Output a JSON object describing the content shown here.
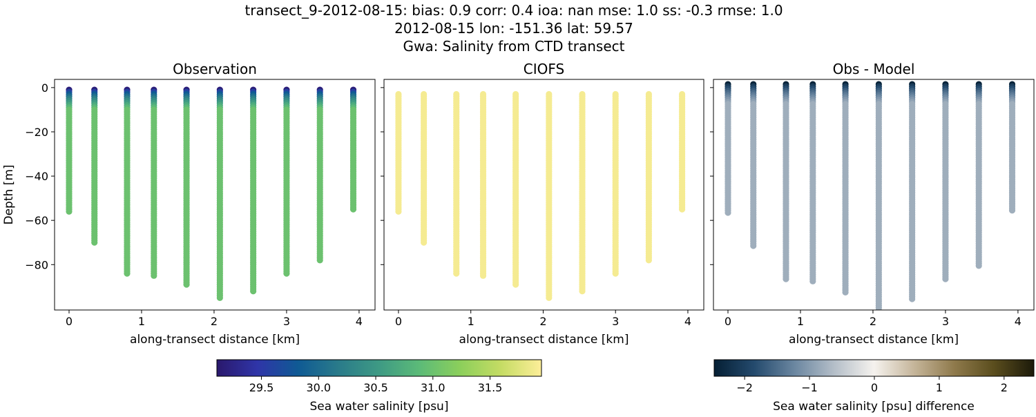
{
  "title_lines": [
    "transect_9-2012-08-15: bias: 0.9  corr: 0.4  ioa: nan  mse: 1.0  ss: -0.3  rmse: 1.0",
    "2012-08-15 lon: -151.36 lat: 59.57",
    "Gwa: Salinity from CTD transect"
  ],
  "chart_data": [
    {
      "type": "scatter",
      "title": "Observation",
      "xlabel": "along-transect distance [km]",
      "ylabel": "Depth [m]",
      "xlim": [
        -0.2,
        4.22
      ],
      "ylim": [
        -100.5,
        3.7
      ],
      "xticks": [
        "0",
        "1",
        "2",
        "3",
        "4"
      ],
      "yticks": [
        "0",
        "−20",
        "−40",
        "−60",
        "−80"
      ],
      "colormap": "haline",
      "stations": [
        {
          "x": 0.0,
          "top": -1,
          "bottom": -56,
          "surface_value": 29.2,
          "deep_value": 31.0
        },
        {
          "x": 0.35,
          "top": -1,
          "bottom": -70,
          "surface_value": 29.2,
          "deep_value": 31.0
        },
        {
          "x": 0.8,
          "top": -1,
          "bottom": -84,
          "surface_value": 29.2,
          "deep_value": 31.0
        },
        {
          "x": 1.17,
          "top": -1,
          "bottom": -85,
          "surface_value": 29.2,
          "deep_value": 31.0
        },
        {
          "x": 1.62,
          "top": -1,
          "bottom": -89,
          "surface_value": 29.2,
          "deep_value": 31.0
        },
        {
          "x": 2.08,
          "top": -1,
          "bottom": -95,
          "surface_value": 29.2,
          "deep_value": 31.0
        },
        {
          "x": 2.54,
          "top": -1,
          "bottom": -92,
          "surface_value": 29.2,
          "deep_value": 31.0
        },
        {
          "x": 3.0,
          "top": -1,
          "bottom": -84,
          "surface_value": 29.2,
          "deep_value": 31.0
        },
        {
          "x": 3.46,
          "top": -1,
          "bottom": -78,
          "surface_value": 29.2,
          "deep_value": 31.0
        },
        {
          "x": 3.92,
          "top": -1,
          "bottom": -55,
          "surface_value": 29.2,
          "deep_value": 31.0
        }
      ]
    },
    {
      "type": "scatter",
      "title": "CIOFS",
      "xlabel": "along-transect distance [km]",
      "xlim": [
        -0.2,
        4.22
      ],
      "ylim": [
        -100.5,
        3.7
      ],
      "xticks": [
        "0",
        "1",
        "2",
        "3",
        "4"
      ],
      "colormap": "haline",
      "stations": [
        {
          "x": 0.0,
          "top": -3,
          "bottom": -56,
          "surface_value": 31.9,
          "deep_value": 31.9
        },
        {
          "x": 0.35,
          "top": -3,
          "bottom": -70,
          "surface_value": 31.9,
          "deep_value": 31.9
        },
        {
          "x": 0.8,
          "top": -3,
          "bottom": -84,
          "surface_value": 31.9,
          "deep_value": 31.9
        },
        {
          "x": 1.17,
          "top": -3,
          "bottom": -85,
          "surface_value": 31.9,
          "deep_value": 31.9
        },
        {
          "x": 1.62,
          "top": -3,
          "bottom": -89,
          "surface_value": 31.9,
          "deep_value": 31.9
        },
        {
          "x": 2.08,
          "top": -3,
          "bottom": -95,
          "surface_value": 31.9,
          "deep_value": 31.9
        },
        {
          "x": 2.54,
          "top": -3,
          "bottom": -92,
          "surface_value": 31.9,
          "deep_value": 31.9
        },
        {
          "x": 3.0,
          "top": -3,
          "bottom": -84,
          "surface_value": 31.9,
          "deep_value": 31.9
        },
        {
          "x": 3.46,
          "top": -3,
          "bottom": -78,
          "surface_value": 31.9,
          "deep_value": 31.9
        },
        {
          "x": 3.92,
          "top": -3,
          "bottom": -55,
          "surface_value": 31.9,
          "deep_value": 31.9
        }
      ]
    },
    {
      "type": "scatter",
      "title": "Obs - Model",
      "xlabel": "along-transect distance [km]",
      "xlim": [
        -0.2,
        4.22
      ],
      "ylim": [
        -100.5,
        3.7
      ],
      "xticks": [
        "0",
        "1",
        "2",
        "3",
        "4"
      ],
      "colormap": "diff",
      "stations": [
        {
          "x": 0.0,
          "top": 1.5,
          "bottom": -57,
          "surface_value": -2.4,
          "deep_value": -0.8
        },
        {
          "x": 0.35,
          "top": 1.5,
          "bottom": -72,
          "surface_value": -2.4,
          "deep_value": -0.8
        },
        {
          "x": 0.8,
          "top": 1.5,
          "bottom": -87,
          "surface_value": -2.4,
          "deep_value": -0.8
        },
        {
          "x": 1.17,
          "top": 1.5,
          "bottom": -88,
          "surface_value": -2.4,
          "deep_value": -0.8
        },
        {
          "x": 1.62,
          "top": 1.5,
          "bottom": -93,
          "surface_value": -2.4,
          "deep_value": -0.8
        },
        {
          "x": 2.08,
          "top": 1.5,
          "bottom": -101,
          "surface_value": -2.4,
          "deep_value": -0.8
        },
        {
          "x": 2.54,
          "top": 1.5,
          "bottom": -96,
          "surface_value": -2.4,
          "deep_value": -0.8
        },
        {
          "x": 3.0,
          "top": 1.5,
          "bottom": -87,
          "surface_value": -2.4,
          "deep_value": -0.8
        },
        {
          "x": 3.46,
          "top": 1.5,
          "bottom": -81,
          "surface_value": -2.4,
          "deep_value": -0.8
        },
        {
          "x": 3.92,
          "top": 1.5,
          "bottom": -56,
          "surface_value": -2.4,
          "deep_value": -0.8
        }
      ]
    }
  ],
  "colorbars": [
    {
      "label": "Sea water salinity [psu]",
      "range": [
        29.11,
        31.95
      ],
      "ticks": [
        "29.5",
        "30.0",
        "30.5",
        "31.0",
        "31.5"
      ],
      "tick_values": [
        29.5,
        30.0,
        30.5,
        31.0,
        31.5
      ],
      "colors": [
        "#2a186c",
        "#2f35a8",
        "#0f5a94",
        "#2a7b8a",
        "#3e9a84",
        "#5cbb78",
        "#8ccf5b",
        "#c5dc64",
        "#fdee99"
      ]
    },
    {
      "label": "Sea water salinity [psu] difference",
      "range": [
        -2.47,
        2.46
      ],
      "ticks": [
        "−2",
        "−1",
        "0",
        "1",
        "2"
      ],
      "tick_values": [
        -2,
        -1,
        0,
        1,
        2
      ],
      "colors": [
        "#051f34",
        "#244a6d",
        "#6a86a0",
        "#b4bec8",
        "#f5f2ee",
        "#c5b59a",
        "#8f7a4c",
        "#5a4d1d",
        "#1c1a0a"
      ]
    }
  ]
}
